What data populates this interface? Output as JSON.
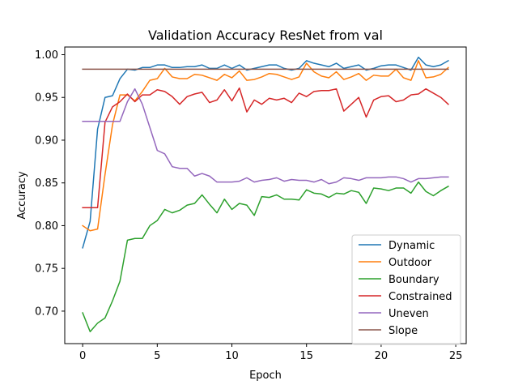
{
  "chart_data": {
    "type": "line",
    "title": "Validation Accuracy ResNet from val",
    "xlabel": "Epoch",
    "ylabel": "Accuracy",
    "xlim": [
      -1.2,
      25.7
    ],
    "ylim": [
      0.662,
      1.009
    ],
    "xticks": [
      0,
      5,
      10,
      15,
      20,
      25
    ],
    "yticks": [
      0.7,
      0.75,
      0.8,
      0.85,
      0.9,
      0.95,
      1.0
    ],
    "ytick_labels": [
      "0.70",
      "0.75",
      "0.80",
      "0.85",
      "0.90",
      "0.95",
      "1.00"
    ],
    "grid": false,
    "legend_position": "lower-right",
    "x": [
      0,
      0.5,
      1,
      1.5,
      2,
      2.5,
      3,
      3.5,
      4,
      4.5,
      5,
      5.5,
      6,
      6.5,
      7,
      7.5,
      8,
      8.5,
      9,
      9.5,
      10,
      10.5,
      11,
      11.5,
      12,
      12.5,
      13,
      13.5,
      14,
      14.5,
      15,
      15.5,
      16,
      16.5,
      17,
      17.5,
      18,
      18.5,
      19,
      19.5,
      20,
      20.5,
      21,
      21.5,
      22,
      22.5,
      23,
      23.5,
      24,
      24.5
    ],
    "series": [
      {
        "name": "Dynamic",
        "color": "#1f77b4",
        "values": [
          0.774,
          0.805,
          0.913,
          0.95,
          0.952,
          0.972,
          0.983,
          0.982,
          0.985,
          0.985,
          0.988,
          0.988,
          0.985,
          0.985,
          0.986,
          0.986,
          0.988,
          0.984,
          0.984,
          0.988,
          0.984,
          0.988,
          0.982,
          0.984,
          0.986,
          0.988,
          0.988,
          0.984,
          0.982,
          0.984,
          0.993,
          0.99,
          0.988,
          0.986,
          0.99,
          0.984,
          0.986,
          0.988,
          0.982,
          0.984,
          0.987,
          0.988,
          0.988,
          0.985,
          0.982,
          0.997,
          0.988,
          0.986,
          0.988,
          0.993
        ]
      },
      {
        "name": "Outdoor",
        "color": "#ff7f0e",
        "values": [
          0.8,
          0.794,
          0.796,
          0.86,
          0.918,
          0.953,
          0.953,
          0.946,
          0.957,
          0.97,
          0.972,
          0.984,
          0.974,
          0.972,
          0.972,
          0.977,
          0.976,
          0.973,
          0.97,
          0.977,
          0.973,
          0.981,
          0.97,
          0.971,
          0.974,
          0.978,
          0.977,
          0.974,
          0.971,
          0.974,
          0.99,
          0.98,
          0.975,
          0.973,
          0.98,
          0.971,
          0.974,
          0.978,
          0.97,
          0.976,
          0.975,
          0.975,
          0.983,
          0.973,
          0.97,
          0.993,
          0.973,
          0.974,
          0.977,
          0.985
        ]
      },
      {
        "name": "Boundary",
        "color": "#2ca02c",
        "values": [
          0.698,
          0.676,
          0.686,
          0.692,
          0.712,
          0.735,
          0.783,
          0.785,
          0.785,
          0.8,
          0.806,
          0.819,
          0.815,
          0.818,
          0.824,
          0.826,
          0.836,
          0.825,
          0.815,
          0.831,
          0.819,
          0.826,
          0.824,
          0.812,
          0.834,
          0.833,
          0.836,
          0.831,
          0.831,
          0.83,
          0.842,
          0.838,
          0.837,
          0.833,
          0.838,
          0.837,
          0.841,
          0.839,
          0.826,
          0.844,
          0.843,
          0.841,
          0.844,
          0.844,
          0.838,
          0.851,
          0.84,
          0.835,
          0.841,
          0.846
        ]
      },
      {
        "name": "Constrained",
        "color": "#d62728",
        "values": [
          0.821,
          0.821,
          0.821,
          0.921,
          0.939,
          0.945,
          0.954,
          0.945,
          0.953,
          0.953,
          0.959,
          0.957,
          0.951,
          0.942,
          0.951,
          0.954,
          0.956,
          0.944,
          0.947,
          0.959,
          0.946,
          0.961,
          0.933,
          0.947,
          0.942,
          0.949,
          0.947,
          0.949,
          0.944,
          0.955,
          0.951,
          0.957,
          0.958,
          0.958,
          0.96,
          0.934,
          0.942,
          0.95,
          0.927,
          0.947,
          0.951,
          0.952,
          0.945,
          0.947,
          0.953,
          0.954,
          0.96,
          0.955,
          0.95,
          0.942
        ]
      },
      {
        "name": "Uneven",
        "color": "#9467bd",
        "values": [
          0.922,
          0.922,
          0.922,
          0.922,
          0.922,
          0.922,
          0.945,
          0.96,
          0.942,
          0.915,
          0.888,
          0.884,
          0.869,
          0.867,
          0.867,
          0.858,
          0.861,
          0.858,
          0.851,
          0.851,
          0.851,
          0.852,
          0.856,
          0.851,
          0.853,
          0.854,
          0.856,
          0.852,
          0.854,
          0.853,
          0.853,
          0.851,
          0.854,
          0.849,
          0.851,
          0.856,
          0.855,
          0.853,
          0.856,
          0.856,
          0.856,
          0.857,
          0.857,
          0.855,
          0.851,
          0.855,
          0.855,
          0.856,
          0.857,
          0.857
        ]
      },
      {
        "name": "Slope",
        "color": "#8c564b",
        "values": [
          0.983,
          0.983,
          0.983,
          0.983,
          0.983,
          0.983,
          0.983,
          0.983,
          0.983,
          0.983,
          0.983,
          0.983,
          0.983,
          0.983,
          0.983,
          0.983,
          0.983,
          0.983,
          0.983,
          0.983,
          0.983,
          0.983,
          0.983,
          0.983,
          0.983,
          0.983,
          0.983,
          0.983,
          0.983,
          0.983,
          0.983,
          0.983,
          0.983,
          0.983,
          0.983,
          0.983,
          0.983,
          0.983,
          0.983,
          0.983,
          0.983,
          0.983,
          0.983,
          0.983,
          0.983,
          0.983,
          0.983,
          0.983,
          0.983,
          0.983
        ]
      }
    ]
  }
}
